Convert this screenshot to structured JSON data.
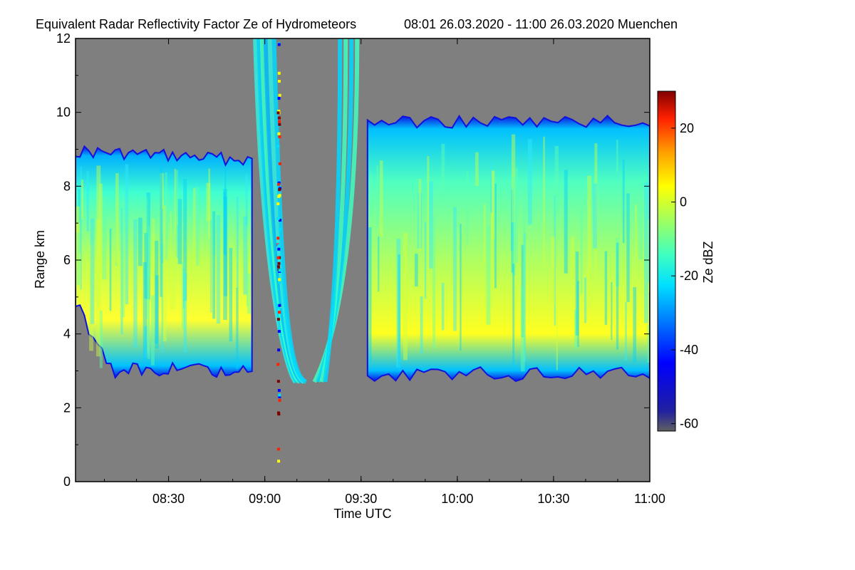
{
  "chart_data": {
    "type": "heatmap",
    "title": "Equivalent Radar Reflectivity Factor Ze of Hydrometeors",
    "subtitle": "08:01 26.03.2020 - 11:00 26.03.2020 Muenchen",
    "xlabel": "Time UTC",
    "ylabel": "Range km",
    "colorbar_label": "Ze dBZ",
    "x_range_minutes": [
      481,
      660
    ],
    "x_ticks": [
      {
        "label": "08:30",
        "minutes": 510
      },
      {
        "label": "09:00",
        "minutes": 540
      },
      {
        "label": "09:30",
        "minutes": 570
      },
      {
        "label": "10:00",
        "minutes": 600
      },
      {
        "label": "10:30",
        "minutes": 630
      },
      {
        "label": "11:00",
        "minutes": 660
      }
    ],
    "y_ticks": [
      0,
      2,
      4,
      6,
      8,
      10,
      12
    ],
    "ylim": [
      0,
      12
    ],
    "colorbar_ticks": [
      20,
      0,
      -20,
      -40,
      -60
    ],
    "colorbar_range": [
      -62,
      30
    ],
    "colormap": [
      "#606060",
      "#2020a0",
      "#0000ff",
      "#0080ff",
      "#00e0ff",
      "#40ffc0",
      "#a0ff60",
      "#ffff00",
      "#ffa000",
      "#ff2000",
      "#800000"
    ],
    "background_color": "#7f7f7f",
    "cloud_regions": [
      {
        "name": "left-cloud-layer",
        "x_start_minutes": 481,
        "x_end_minutes": 536,
        "base_km": 2.8,
        "top_km": 9.0,
        "peak_dbz": 0
      },
      {
        "name": "fall-streaks",
        "x_start_minutes": 537,
        "x_end_minutes": 571,
        "base_km": 2.7,
        "top_km": 12.0,
        "peak_dbz": -20
      },
      {
        "name": "right-cloud-layer",
        "x_start_minutes": 572,
        "x_end_minutes": 660,
        "base_km": 2.7,
        "top_km": 9.8,
        "peak_dbz": 0
      }
    ]
  }
}
